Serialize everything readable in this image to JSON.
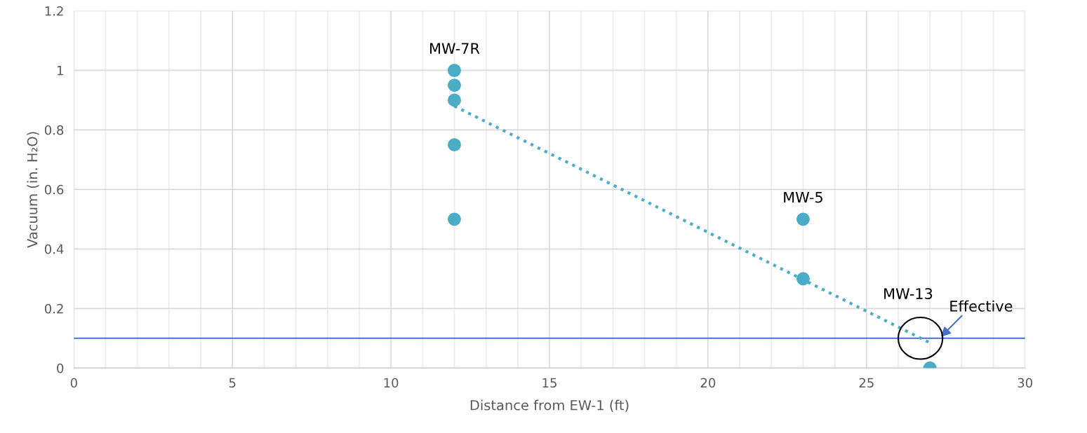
{
  "chart_data": {
    "type": "scatter",
    "xlabel": "Distance from EW-1 (ft)",
    "ylabel": "Vacuum (in. H₂O)",
    "xlim": [
      0,
      30
    ],
    "ylim": [
      0,
      1.2
    ],
    "xticks": [
      0,
      {
        "value": 1,
        "label": null
      },
      {
        "value": 2,
        "label": null
      },
      {
        "value": 3,
        "label": null
      },
      {
        "value": 4,
        "label": null
      },
      5,
      {
        "value": 6,
        "label": null
      },
      {
        "value": 7,
        "label": null
      },
      {
        "value": 8,
        "label": null
      },
      {
        "value": 9,
        "label": null
      },
      10,
      {
        "value": 11,
        "label": null
      },
      {
        "value": 12,
        "label": null
      },
      {
        "value": 13,
        "label": null
      },
      {
        "value": 14,
        "label": null
      },
      15,
      {
        "value": 16,
        "label": null
      },
      {
        "value": 17,
        "label": null
      },
      {
        "value": 18,
        "label": null
      },
      {
        "value": 19,
        "label": null
      },
      20,
      {
        "value": 21,
        "label": null
      },
      {
        "value": 22,
        "label": null
      },
      {
        "value": 23,
        "label": null
      },
      {
        "value": 24,
        "label": null
      },
      25,
      {
        "value": 26,
        "label": null
      },
      {
        "value": 27,
        "label": null
      },
      {
        "value": 28,
        "label": null
      },
      {
        "value": 29,
        "label": null
      },
      30
    ],
    "yticks": [
      0,
      0.2,
      0.4,
      0.6,
      0.8,
      1,
      1.2
    ],
    "grid": true,
    "legend": false,
    "marker": "circle",
    "series": [
      {
        "color": "#4bacc6",
        "x": [
          12,
          12,
          12,
          12,
          12,
          23,
          23,
          27
        ],
        "values": [
          1,
          0.95,
          0.9,
          0.75,
          0.5,
          0.5,
          0.3,
          0
        ]
      },
      {
        "type": "line",
        "color": "#4bacc6",
        "line_style": "dotted",
        "marker": "none",
        "x": [
          12,
          27
        ],
        "values": [
          0.88,
          0.085
        ]
      }
    ],
    "ref_lines": [
      {
        "axis": "y",
        "value": 0.1,
        "color": "#4472c4"
      }
    ],
    "annotations": [
      {
        "text": "MW-7R",
        "x": 12,
        "y": 1
      },
      {
        "text": "MW-5",
        "x": 23,
        "y": 0.5
      },
      "MW-13",
      {
        "text": "Effective",
        "x": 27.3,
        "y": 0.1
      }
    ]
  }
}
